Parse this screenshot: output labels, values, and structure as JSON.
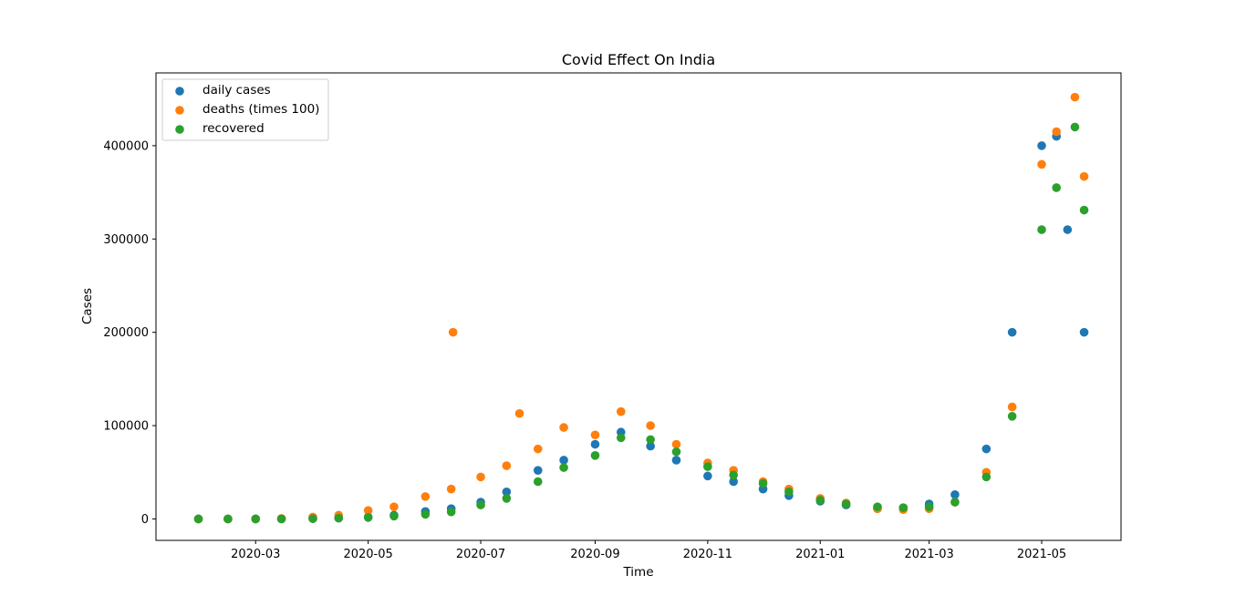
{
  "chart_data": {
    "type": "scatter",
    "title": "Covid Effect On India",
    "xlabel": "Time",
    "ylabel": "Cases",
    "xlim": [
      "2020-01-07",
      "2021-06-13"
    ],
    "ylim": [
      -23000,
      478000
    ],
    "x_ticks": [
      "2020-03",
      "2020-05",
      "2020-07",
      "2020-09",
      "2020-11",
      "2021-01",
      "2021-03",
      "2021-05"
    ],
    "x_tick_dates": [
      "2020-03-01",
      "2020-05-01",
      "2020-07-01",
      "2020-09-01",
      "2020-11-01",
      "2021-01-01",
      "2021-03-01",
      "2021-05-01"
    ],
    "y_ticks": [
      0,
      100000,
      200000,
      300000,
      400000
    ],
    "legend_position": "upper-left",
    "grid": false,
    "series": [
      {
        "name": "daily cases",
        "color": "#1f77b4",
        "points": [
          [
            "2020-01-30",
            0
          ],
          [
            "2020-02-15",
            0
          ],
          [
            "2020-03-01",
            50
          ],
          [
            "2020-03-15",
            100
          ],
          [
            "2020-04-01",
            400
          ],
          [
            "2020-04-15",
            1000
          ],
          [
            "2020-05-01",
            2000
          ],
          [
            "2020-05-15",
            4000
          ],
          [
            "2020-06-01",
            8000
          ],
          [
            "2020-06-15",
            11000
          ],
          [
            "2020-07-01",
            18000
          ],
          [
            "2020-07-15",
            29000
          ],
          [
            "2020-08-01",
            52000
          ],
          [
            "2020-08-15",
            63000
          ],
          [
            "2020-09-01",
            80000
          ],
          [
            "2020-09-15",
            93000
          ],
          [
            "2020-10-01",
            78000
          ],
          [
            "2020-10-15",
            63000
          ],
          [
            "2020-11-01",
            46000
          ],
          [
            "2020-11-15",
            40000
          ],
          [
            "2020-12-01",
            32000
          ],
          [
            "2020-12-15",
            25000
          ],
          [
            "2021-01-01",
            19000
          ],
          [
            "2021-01-15",
            15000
          ],
          [
            "2021-02-01",
            11000
          ],
          [
            "2021-02-15",
            12000
          ],
          [
            "2021-03-01",
            16000
          ],
          [
            "2021-03-15",
            26000
          ],
          [
            "2021-04-01",
            75000
          ],
          [
            "2021-04-15",
            200000
          ],
          [
            "2021-05-01",
            400000
          ],
          [
            "2021-05-09",
            410000
          ],
          [
            "2021-05-15",
            310000
          ],
          [
            "2021-05-24",
            200000
          ]
        ]
      },
      {
        "name": "deaths (times 100)",
        "color": "#ff7f0e",
        "points": [
          [
            "2020-01-30",
            0
          ],
          [
            "2020-02-15",
            0
          ],
          [
            "2020-03-01",
            0
          ],
          [
            "2020-03-15",
            500
          ],
          [
            "2020-04-01",
            2000
          ],
          [
            "2020-04-15",
            4000
          ],
          [
            "2020-05-01",
            9000
          ],
          [
            "2020-05-15",
            13000
          ],
          [
            "2020-06-01",
            24000
          ],
          [
            "2020-06-15",
            32000
          ],
          [
            "2020-06-16",
            200000
          ],
          [
            "2020-07-01",
            45000
          ],
          [
            "2020-07-15",
            57000
          ],
          [
            "2020-07-22",
            113000
          ],
          [
            "2020-08-01",
            75000
          ],
          [
            "2020-08-15",
            98000
          ],
          [
            "2020-09-01",
            90000
          ],
          [
            "2020-09-15",
            115000
          ],
          [
            "2020-10-01",
            100000
          ],
          [
            "2020-10-15",
            80000
          ],
          [
            "2020-11-01",
            60000
          ],
          [
            "2020-11-15",
            52000
          ],
          [
            "2020-12-01",
            40000
          ],
          [
            "2020-12-15",
            32000
          ],
          [
            "2021-01-01",
            22000
          ],
          [
            "2021-01-15",
            17000
          ],
          [
            "2021-02-01",
            11000
          ],
          [
            "2021-02-15",
            10000
          ],
          [
            "2021-03-01",
            11000
          ],
          [
            "2021-03-15",
            18000
          ],
          [
            "2021-04-01",
            50000
          ],
          [
            "2021-04-15",
            120000
          ],
          [
            "2021-05-01",
            380000
          ],
          [
            "2021-05-09",
            415000
          ],
          [
            "2021-05-19",
            452000
          ],
          [
            "2021-05-24",
            367000
          ]
        ]
      },
      {
        "name": "recovered",
        "color": "#2ca02c",
        "points": [
          [
            "2020-01-30",
            0
          ],
          [
            "2020-02-15",
            0
          ],
          [
            "2020-03-01",
            0
          ],
          [
            "2020-03-15",
            0
          ],
          [
            "2020-04-01",
            300
          ],
          [
            "2020-04-15",
            800
          ],
          [
            "2020-05-01",
            1500
          ],
          [
            "2020-05-15",
            3000
          ],
          [
            "2020-06-01",
            5000
          ],
          [
            "2020-06-15",
            7500
          ],
          [
            "2020-07-01",
            15000
          ],
          [
            "2020-07-15",
            22000
          ],
          [
            "2020-08-01",
            40000
          ],
          [
            "2020-08-15",
            55000
          ],
          [
            "2020-09-01",
            68000
          ],
          [
            "2020-09-15",
            87000
          ],
          [
            "2020-10-01",
            85000
          ],
          [
            "2020-10-15",
            72000
          ],
          [
            "2020-11-01",
            56000
          ],
          [
            "2020-11-15",
            47000
          ],
          [
            "2020-12-01",
            38000
          ],
          [
            "2020-12-15",
            29000
          ],
          [
            "2021-01-01",
            20000
          ],
          [
            "2021-01-15",
            16000
          ],
          [
            "2021-02-01",
            13000
          ],
          [
            "2021-02-15",
            12000
          ],
          [
            "2021-03-01",
            13000
          ],
          [
            "2021-03-15",
            18000
          ],
          [
            "2021-04-01",
            45000
          ],
          [
            "2021-04-15",
            110000
          ],
          [
            "2021-05-01",
            310000
          ],
          [
            "2021-05-09",
            355000
          ],
          [
            "2021-05-19",
            420000
          ],
          [
            "2021-05-24",
            331000
          ]
        ]
      }
    ]
  }
}
